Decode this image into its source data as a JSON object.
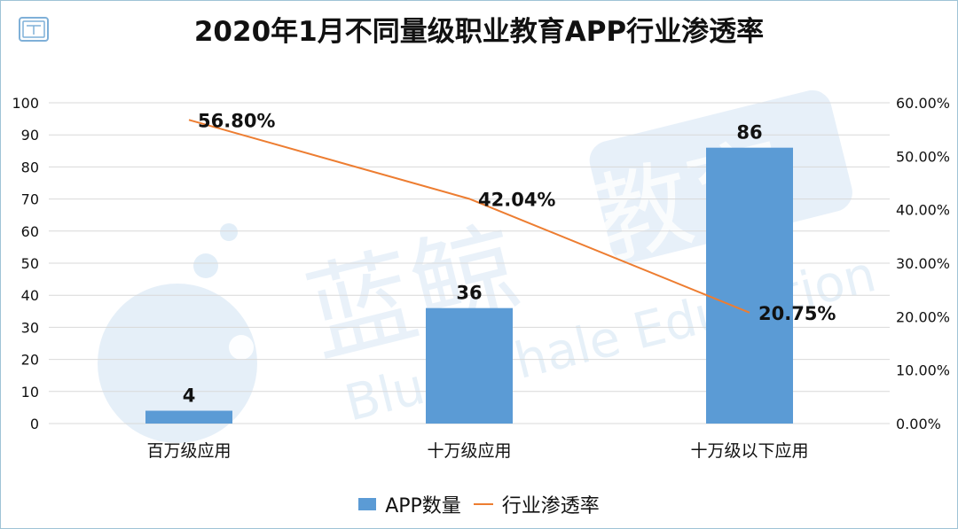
{
  "title": "2020年1月不同量级职业教育APP行业渗透率",
  "colors": {
    "bar": "#5b9bd5",
    "line": "#ed7d31",
    "grid": "#d9d9d9",
    "text": "#111111",
    "watermark": "#cfe2f3",
    "frame": "#9fc3d6"
  },
  "icons": {
    "logo": "document-logo-icon"
  },
  "watermark": {
    "cn": "蓝鲸",
    "badge": "教育",
    "en": "Blue Whale Education"
  },
  "chart_data": {
    "type": "bar",
    "categories": [
      "百万级应用",
      "十万级应用",
      "十万级以下应用"
    ],
    "series": [
      {
        "name": "APP数量",
        "type": "bar",
        "axis": "left",
        "values": [
          4,
          36,
          86
        ],
        "labels": [
          "4",
          "36",
          "86"
        ]
      },
      {
        "name": "行业渗透率",
        "type": "line",
        "axis": "right",
        "values": [
          56.8,
          42.04,
          20.75
        ],
        "labels": [
          "56.80%",
          "42.04%",
          "20.75%"
        ]
      }
    ],
    "y_left": {
      "min": 0,
      "max": 100,
      "step": 10,
      "ticks": [
        "0",
        "10",
        "20",
        "30",
        "40",
        "50",
        "60",
        "70",
        "80",
        "90",
        "100"
      ]
    },
    "y_right": {
      "min": 0,
      "max": 60,
      "step": 10,
      "ticks": [
        "0.00%",
        "10.00%",
        "20.00%",
        "30.00%",
        "40.00%",
        "50.00%",
        "60.00%"
      ]
    },
    "grid": true,
    "legend": {
      "position": "bottom",
      "items": [
        "APP数量",
        "行业渗透率"
      ]
    }
  }
}
